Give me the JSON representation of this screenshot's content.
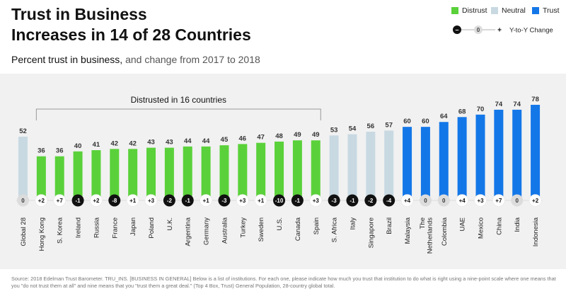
{
  "header": {
    "title_line1": "Trust in Business",
    "title_line2": "Increases in 14 of 28 Countries",
    "subtitle_main": "Percent trust in business,",
    "subtitle_rest": " and change from 2017 to 2018"
  },
  "legend": {
    "distrust": "Distrust",
    "neutral": "Neutral",
    "trust": "Trust",
    "yoy_minus": "–",
    "yoy_zero": "0",
    "yoy_plus": "+",
    "yoy_label": "Y-to-Y Change"
  },
  "colors": {
    "distrust": "#5ad13a",
    "neutral": "#c8d9e2",
    "trust": "#1477e8",
    "bubble_dark": "#111111",
    "bubble_zero": "#dcdcdc",
    "bubble_white": "#ffffff"
  },
  "chart_data": {
    "type": "bar",
    "title": "Trust in Business Increases in 14 of 28 Countries",
    "subtitle": "Percent trust in business, and change from 2017 to 2018",
    "bracket_label": "Distrusted in 16 countries",
    "categories": [
      "Global 28",
      "Hong Kong",
      "S. Korea",
      "Ireland",
      "Russia",
      "France",
      "Japan",
      "Poland",
      "U.K.",
      "Argentina",
      "Germany",
      "Australia",
      "Turkey",
      "Sweden",
      "U.S.",
      "Canada",
      "Spain",
      "S. Africa",
      "Italy",
      "Singapore",
      "Brazil",
      "Malaysia",
      "The\nNetherlands",
      "Colombia",
      "UAE",
      "Mexico",
      "China",
      "India",
      "Indonesia"
    ],
    "values": [
      52,
      36,
      36,
      40,
      41,
      42,
      42,
      43,
      43,
      44,
      44,
      45,
      46,
      47,
      48,
      49,
      49,
      53,
      54,
      56,
      57,
      60,
      60,
      64,
      68,
      70,
      74,
      74,
      78
    ],
    "yoy_change": [
      "0",
      "+2",
      "+7",
      "-1",
      "+2",
      "-8",
      "+1",
      "+3",
      "-2",
      "-1",
      "+1",
      "-3",
      "+3",
      "+1",
      "-10",
      "-1",
      "+3",
      "-3",
      "-1",
      "-2",
      "-4",
      "+4",
      "0",
      "0",
      "+4",
      "+3",
      "+7",
      "0",
      "+2"
    ],
    "categories_status": [
      "neutral",
      "distrust",
      "distrust",
      "distrust",
      "distrust",
      "distrust",
      "distrust",
      "distrust",
      "distrust",
      "distrust",
      "distrust",
      "distrust",
      "distrust",
      "distrust",
      "distrust",
      "distrust",
      "distrust",
      "neutral",
      "neutral",
      "neutral",
      "neutral",
      "trust",
      "trust",
      "trust",
      "trust",
      "trust",
      "trust",
      "trust",
      "trust"
    ],
    "ylim": [
      0,
      100
    ],
    "xlabel": "",
    "ylabel": ""
  },
  "footer": {
    "source": "Source: 2018 Edelman Trust Barometer. TRU_INS. [BUSINESS IN GENERAL] Below is a list of institutions. For each one, please indicate how much you trust that institution to do what is right using a nine-point scale where one means that you \"do not trust them at all\" and nine means that you \"trust them a great deal.\" (Top 4 Box, Trust) General Population, 28-country global total."
  }
}
